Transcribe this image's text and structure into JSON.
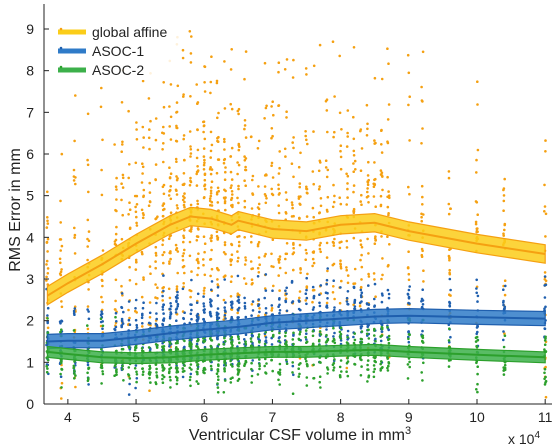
{
  "chart_data": {
    "type": "scatter",
    "xlabel": "Ventricular CSF volume in mm",
    "xlabel_superscript": "3",
    "ylabel": "RMS Error in mm",
    "x_multiplier_label": "x 10",
    "x_multiplier_exponent": "4",
    "xlim": [
      3.65,
      11.1
    ],
    "ylim": [
      0,
      9.6
    ],
    "xticks": [
      "4",
      "5",
      "6",
      "7",
      "8",
      "9",
      "10",
      "11"
    ],
    "yticks": [
      "0",
      "1",
      "2",
      "3",
      "4",
      "5",
      "6",
      "7",
      "8",
      "9"
    ],
    "grid": false,
    "legend_position": "top-left",
    "series": [
      {
        "name": "global affine",
        "color": "#f5a011",
        "band_color": "#fbcd19",
        "mean_line": [
          [
            3.7,
            2.6
          ],
          [
            4.0,
            2.9
          ],
          [
            4.5,
            3.35
          ],
          [
            5.0,
            3.85
          ],
          [
            5.5,
            4.3
          ],
          [
            5.8,
            4.5
          ],
          [
            6.1,
            4.45
          ],
          [
            6.4,
            4.3
          ],
          [
            6.5,
            4.4
          ],
          [
            7.0,
            4.2
          ],
          [
            7.5,
            4.15
          ],
          [
            8.0,
            4.3
          ],
          [
            8.5,
            4.35
          ],
          [
            9.0,
            4.15
          ],
          [
            10.0,
            3.85
          ],
          [
            11.0,
            3.6
          ]
        ],
        "band_halfwidth": 0.22
      },
      {
        "name": "ASOC-1",
        "color": "#1f5fae",
        "band_color": "#2f7bc8",
        "mean_line": [
          [
            3.7,
            1.5
          ],
          [
            4.0,
            1.52
          ],
          [
            4.5,
            1.52
          ],
          [
            5.0,
            1.6
          ],
          [
            5.5,
            1.7
          ],
          [
            6.0,
            1.78
          ],
          [
            6.5,
            1.85
          ],
          [
            7.0,
            1.95
          ],
          [
            7.5,
            2.0
          ],
          [
            8.0,
            2.05
          ],
          [
            8.5,
            2.1
          ],
          [
            9.0,
            2.12
          ],
          [
            10.0,
            2.08
          ],
          [
            11.0,
            2.05
          ]
        ],
        "band_halfwidth": 0.17
      },
      {
        "name": "ASOC-2",
        "color": "#2ca02c",
        "band_color": "#3cb04a",
        "mean_line": [
          [
            3.7,
            1.25
          ],
          [
            4.0,
            1.2
          ],
          [
            4.5,
            1.12
          ],
          [
            5.0,
            1.1
          ],
          [
            5.5,
            1.12
          ],
          [
            6.0,
            1.18
          ],
          [
            6.5,
            1.22
          ],
          [
            7.0,
            1.25
          ],
          [
            7.5,
            1.25
          ],
          [
            8.0,
            1.28
          ],
          [
            8.5,
            1.3
          ],
          [
            9.0,
            1.25
          ],
          [
            10.0,
            1.18
          ],
          [
            11.0,
            1.12
          ]
        ],
        "band_halfwidth": 0.13
      }
    ],
    "scatter_columns_x": [
      3.7,
      3.9,
      4.1,
      4.3,
      4.5,
      4.7,
      4.8,
      4.9,
      5.0,
      5.1,
      5.2,
      5.3,
      5.4,
      5.5,
      5.6,
      5.7,
      5.8,
      5.9,
      6.0,
      6.1,
      6.2,
      6.3,
      6.4,
      6.5,
      6.6,
      6.7,
      6.8,
      6.9,
      7.0,
      7.1,
      7.2,
      7.3,
      7.4,
      7.5,
      7.6,
      7.7,
      7.8,
      7.9,
      8.0,
      8.1,
      8.2,
      8.3,
      8.4,
      8.5,
      8.6,
      8.7,
      9.0,
      9.2,
      9.6,
      10.0,
      10.4,
      11.0
    ]
  }
}
